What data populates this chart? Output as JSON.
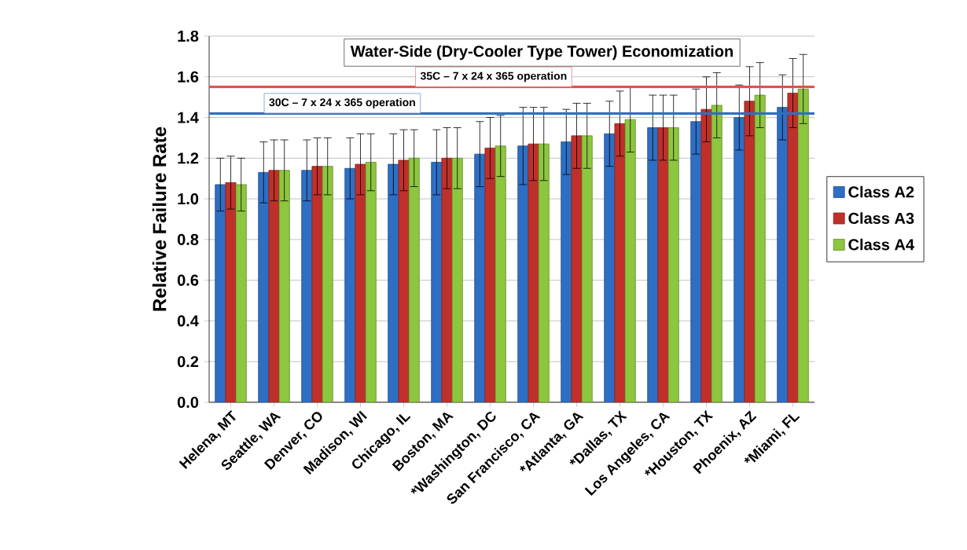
{
  "chart_data": {
    "type": "bar",
    "title": "Water-Side (Dry-Cooler Type Tower) Economization",
    "ylabel": "Relative Failure Rate",
    "categories": [
      "Helena, MT",
      "Seattle, WA",
      "Denver, CO",
      "Madison, WI",
      "Chicago, IL",
      "Boston, MA",
      "*Washington, DC",
      "San Francisco, CA",
      "*Atlanta, GA",
      "*Dallas, TX",
      "Los Angeles, CA",
      "*Houston, TX",
      "Phoenix, AZ",
      "*Miami, FL"
    ],
    "series": [
      {
        "name": "Class A2",
        "color": "#2e6fc4",
        "values": [
          1.07,
          1.13,
          1.14,
          1.15,
          1.17,
          1.18,
          1.22,
          1.26,
          1.28,
          1.32,
          1.35,
          1.38,
          1.4,
          1.45
        ],
        "errors": [
          0.13,
          0.15,
          0.15,
          0.15,
          0.15,
          0.16,
          0.16,
          0.19,
          0.16,
          0.16,
          0.16,
          0.16,
          0.16,
          0.16
        ]
      },
      {
        "name": "Class A3",
        "color": "#c0302a",
        "values": [
          1.08,
          1.14,
          1.16,
          1.17,
          1.19,
          1.2,
          1.25,
          1.27,
          1.31,
          1.37,
          1.35,
          1.44,
          1.48,
          1.52
        ],
        "errors": [
          0.13,
          0.15,
          0.14,
          0.15,
          0.15,
          0.15,
          0.15,
          0.18,
          0.16,
          0.16,
          0.16,
          0.16,
          0.17,
          0.17
        ]
      },
      {
        "name": "Class A4",
        "color": "#8dc63f",
        "values": [
          1.07,
          1.14,
          1.16,
          1.18,
          1.2,
          1.2,
          1.26,
          1.27,
          1.31,
          1.39,
          1.35,
          1.46,
          1.51,
          1.54
        ],
        "errors": [
          0.13,
          0.15,
          0.14,
          0.14,
          0.14,
          0.15,
          0.15,
          0.18,
          0.16,
          0.16,
          0.16,
          0.16,
          0.16,
          0.17
        ]
      }
    ],
    "ylim": [
      0,
      1.8
    ],
    "yticks": [
      {
        "value": 0,
        "label": "0.0"
      },
      {
        "value": 0.2,
        "label": "0.2"
      },
      {
        "value": 0.4,
        "label": "0.4"
      },
      {
        "value": 0.6,
        "label": "0.6"
      },
      {
        "value": 0.8,
        "label": "0.8"
      },
      {
        "value": 1.0,
        "label": "1.0"
      },
      {
        "value": 1.2,
        "label": "1.2"
      },
      {
        "value": 1.4,
        "label": "1.4"
      },
      {
        "value": 1.6,
        "label": "1.6"
      },
      {
        "value": 1.8,
        "label": "1.8"
      }
    ],
    "ref_lines": [
      {
        "axis": "y",
        "value": 1.55,
        "label": "35C – 7 x 24 x 365 operation",
        "color": "#e05050"
      },
      {
        "axis": "y",
        "value": 1.42,
        "label": "30C – 7 x 24 x 365 operation",
        "color": "#2e6fc4"
      }
    ],
    "grid": "y",
    "legend": "right"
  }
}
